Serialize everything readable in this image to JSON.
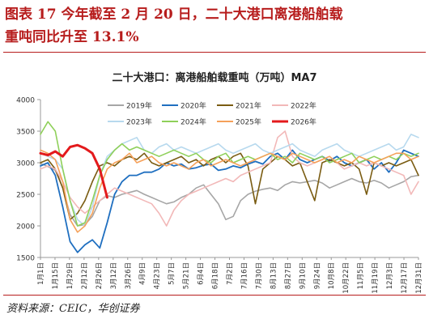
{
  "figure": {
    "caption_line1": "图表 17   今年截至 2 月 20 日，二十大港口离港船舶载",
    "caption_line2": "重吨同比升至 13.1%",
    "source": "资料来源：CEIC，华创证券"
  },
  "colors": {
    "caption": "#b71d1d",
    "axis": "#999999",
    "text": "#333333"
  },
  "chart_data": {
    "type": "line",
    "title": "二十大港口：离港船舶载重吨（万吨）MA7",
    "xlabel": "",
    "ylabel": "",
    "ylim": [
      1500,
      4000
    ],
    "yticks": [
      1500,
      2000,
      2500,
      3000,
      3500,
      4000
    ],
    "xticks": [
      "1月1日",
      "1月15日",
      "1月29日",
      "2月12日",
      "2月26日",
      "3月12日",
      "3月26日",
      "4月9日",
      "4月23日",
      "5月7日",
      "5月21日",
      "6月4日",
      "6月18日",
      "7月2日",
      "7月16日",
      "7月30日",
      "8月13日",
      "8月27日",
      "9月10日",
      "9月24日",
      "10月8日",
      "10月22日",
      "11月5日",
      "11月19日",
      "12月3日",
      "12月17日",
      "12月31日"
    ],
    "legend": "top",
    "grid": false,
    "series": [
      {
        "name": "2019年",
        "color": "#a6a6a6",
        "width": 1.6,
        "values": [
          2990,
          2940,
          2880,
          2600,
          2180,
          2000,
          2020,
          2150,
          2400,
          2480,
          2450,
          2500,
          2530,
          2560,
          2500,
          2450,
          2400,
          2350,
          2380,
          2450,
          2500,
          2600,
          2650,
          2500,
          2350,
          2100,
          2150,
          2400,
          2500,
          2550,
          2580,
          2600,
          2560,
          2650,
          2700,
          2680,
          2700,
          2720,
          2680,
          2600,
          2650,
          2700,
          2750,
          2700,
          2680,
          2720,
          2680,
          2600,
          2650,
          2700,
          2780,
          2800
        ]
      },
      {
        "name": "2020年",
        "color": "#1f6fc0",
        "width": 1.8,
        "values": [
          2950,
          3000,
          2800,
          2300,
          1750,
          1580,
          1700,
          1780,
          1650,
          2050,
          2500,
          2700,
          2800,
          2800,
          2850,
          2850,
          2900,
          3000,
          2950,
          2980,
          2900,
          2920,
          2960,
          2980,
          2880,
          2900,
          2950,
          2920,
          2980,
          3020,
          2980,
          3100,
          3150,
          3050,
          3200,
          3050,
          3000,
          3050,
          3100,
          3030,
          3100,
          3000,
          2950,
          3000,
          3050,
          2900,
          3000,
          2850,
          3000,
          3200,
          3150,
          3100
        ]
      },
      {
        "name": "2021年",
        "color": "#7a5c12",
        "width": 1.6,
        "values": [
          3000,
          3050,
          2900,
          2600,
          2100,
          2200,
          2400,
          2700,
          2950,
          3000,
          2950,
          3050,
          3100,
          3050,
          3150,
          3000,
          2950,
          3000,
          3050,
          3100,
          3000,
          3050,
          2950,
          3050,
          3100,
          3000,
          3100,
          3150,
          2950,
          2350,
          2900,
          3000,
          3100,
          3050,
          2950,
          3000,
          2700,
          2400,
          3000,
          3050,
          3000,
          2950,
          3000,
          2900,
          2500,
          3000,
          2950,
          3000,
          2950,
          3000,
          3050,
          2800
        ]
      },
      {
        "name": "2022年",
        "color": "#f2b8b8",
        "width": 1.6,
        "values": [
          2900,
          2950,
          2900,
          2700,
          2450,
          2300,
          2200,
          2300,
          2400,
          2500,
          2600,
          2550,
          2500,
          2450,
          2400,
          2350,
          2200,
          2000,
          2250,
          2400,
          2500,
          2550,
          2600,
          2650,
          2700,
          2750,
          2700,
          2800,
          2850,
          2900,
          2950,
          3000,
          3400,
          3500,
          3100,
          3000,
          2950,
          3000,
          3050,
          3100,
          3000,
          2900,
          2950,
          3000,
          2950,
          3000,
          2950,
          2900,
          2850,
          2800,
          2500,
          2700
        ]
      },
      {
        "name": "2023年",
        "color": "#b7d9ee",
        "width": 1.6,
        "values": [
          3150,
          3100,
          3050,
          2900,
          2400,
          2100,
          2000,
          2300,
          2800,
          3100,
          3200,
          3300,
          3350,
          3400,
          3200,
          3150,
          3250,
          3300,
          3200,
          3250,
          3200,
          3150,
          3200,
          3250,
          3300,
          3200,
          3150,
          3200,
          3250,
          3300,
          3200,
          3150,
          3200,
          3250,
          3300,
          3200,
          3150,
          3100,
          3200,
          3250,
          3300,
          3200,
          3150,
          3100,
          3150,
          3200,
          3250,
          3300,
          3200,
          3250,
          3450,
          3400
        ]
      },
      {
        "name": "2024年",
        "color": "#8fd05a",
        "width": 1.6,
        "values": [
          3450,
          3650,
          3500,
          2900,
          2400,
          2000,
          2050,
          2400,
          2800,
          3050,
          3200,
          3300,
          3200,
          3250,
          3200,
          3150,
          3100,
          3150,
          3200,
          3150,
          3100,
          3150,
          3050,
          3000,
          3100,
          3150,
          3000,
          3050,
          3100,
          3050,
          3100,
          3150,
          3050,
          3100,
          3000,
          3150,
          3100,
          3050,
          3100,
          3000,
          3050,
          3100,
          3150,
          3000,
          3050,
          3100,
          3050,
          3100,
          3050,
          3150,
          3100,
          3150
        ]
      },
      {
        "name": "2025年",
        "color": "#f5a15a",
        "width": 1.6,
        "values": [
          3200,
          3150,
          3050,
          2700,
          2100,
          1900,
          2000,
          2200,
          2600,
          2900,
          3000,
          3050,
          3150,
          3000,
          3050,
          3100,
          3000,
          2950,
          3000,
          2950,
          2900,
          3000,
          3050,
          2950,
          3000,
          3050,
          3000,
          2950,
          3000,
          3050,
          3100,
          3150,
          3100,
          3050,
          3150,
          3100,
          3050,
          3000,
          3050,
          3100,
          3000,
          3050,
          3000,
          3100,
          3050,
          3000,
          3050,
          3100,
          3150,
          3150,
          3050,
          3100
        ]
      },
      {
        "name": "2026年",
        "color": "#e31a1c",
        "width": 3,
        "values": [
          3150,
          3120,
          3180,
          3100,
          3250,
          3280,
          3230,
          3150,
          2900,
          2450
        ]
      }
    ]
  }
}
